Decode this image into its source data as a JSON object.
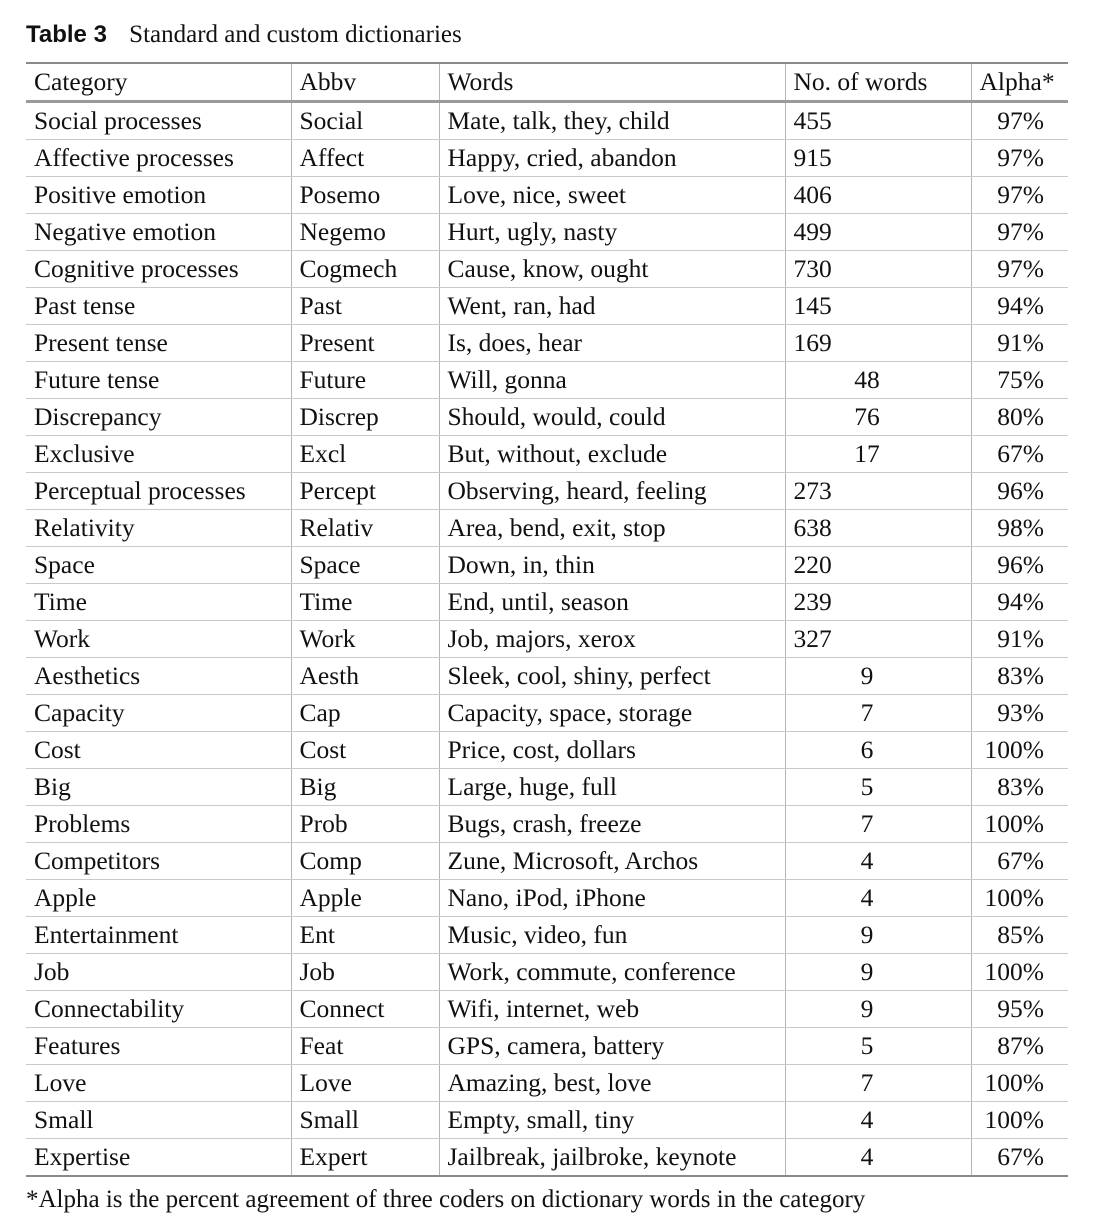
{
  "caption": {
    "label": "Table 3",
    "title": "Standard and custom dictionaries"
  },
  "columns": [
    "Category",
    "Abbv",
    "Words",
    "No. of words",
    "Alpha*"
  ],
  "rows": [
    {
      "category": "Social processes",
      "abbv": "Social",
      "words": "Mate, talk, they, child",
      "count": "455",
      "alpha": "97%"
    },
    {
      "category": "Affective processes",
      "abbv": "Affect",
      "words": "Happy, cried, abandon",
      "count": "915",
      "alpha": "97%"
    },
    {
      "category": "Positive emotion",
      "abbv": "Posemo",
      "words": "Love, nice, sweet",
      "count": "406",
      "alpha": "97%"
    },
    {
      "category": "Negative emotion",
      "abbv": "Negemo",
      "words": "Hurt, ugly, nasty",
      "count": "499",
      "alpha": "97%"
    },
    {
      "category": "Cognitive processes",
      "abbv": "Cogmech",
      "words": "Cause, know, ought",
      "count": "730",
      "alpha": "97%"
    },
    {
      "category": "Past tense",
      "abbv": "Past",
      "words": "Went, ran, had",
      "count": "145",
      "alpha": "94%"
    },
    {
      "category": "Present tense",
      "abbv": "Present",
      "words": "Is, does, hear",
      "count": "169",
      "alpha": "91%"
    },
    {
      "category": "Future tense",
      "abbv": "Future",
      "words": "Will, gonna",
      "count": "48",
      "alpha": "75%"
    },
    {
      "category": "Discrepancy",
      "abbv": "Discrep",
      "words": "Should, would, could",
      "count": "76",
      "alpha": "80%"
    },
    {
      "category": "Exclusive",
      "abbv": "Excl",
      "words": "But, without, exclude",
      "count": "17",
      "alpha": "67%"
    },
    {
      "category": "Perceptual processes",
      "abbv": "Percept",
      "words": "Observing, heard, feeling",
      "count": "273",
      "alpha": "96%"
    },
    {
      "category": "Relativity",
      "abbv": "Relativ",
      "words": "Area, bend, exit, stop",
      "count": "638",
      "alpha": "98%"
    },
    {
      "category": "Space",
      "abbv": "Space",
      "words": "Down, in, thin",
      "count": "220",
      "alpha": "96%"
    },
    {
      "category": "Time",
      "abbv": "Time",
      "words": "End, until, season",
      "count": "239",
      "alpha": "94%"
    },
    {
      "category": "Work",
      "abbv": "Work",
      "words": "Job, majors, xerox",
      "count": "327",
      "alpha": "91%"
    },
    {
      "category": "Aesthetics",
      "abbv": "Aesth",
      "words": "Sleek, cool, shiny, perfect",
      "count": "9",
      "alpha": "83%"
    },
    {
      "category": "Capacity",
      "abbv": "Cap",
      "words": "Capacity, space, storage",
      "count": "7",
      "alpha": "93%"
    },
    {
      "category": "Cost",
      "abbv": "Cost",
      "words": "Price, cost, dollars",
      "count": "6",
      "alpha": "100%"
    },
    {
      "category": "Big",
      "abbv": "Big",
      "words": "Large, huge, full",
      "count": "5",
      "alpha": "83%"
    },
    {
      "category": "Problems",
      "abbv": "Prob",
      "words": "Bugs, crash, freeze",
      "count": "7",
      "alpha": "100%"
    },
    {
      "category": "Competitors",
      "abbv": "Comp",
      "words": "Zune, Microsoft, Archos",
      "count": "4",
      "alpha": "67%"
    },
    {
      "category": "Apple",
      "abbv": "Apple",
      "words": "Nano, iPod, iPhone",
      "count": "4",
      "alpha": "100%"
    },
    {
      "category": "Entertainment",
      "abbv": "Ent",
      "words": "Music, video, fun",
      "count": "9",
      "alpha": "85%"
    },
    {
      "category": "Job",
      "abbv": "Job",
      "words": "Work, commute, conference",
      "count": "9",
      "alpha": "100%"
    },
    {
      "category": "Connectability",
      "abbv": "Connect",
      "words": "Wifi, internet, web",
      "count": "9",
      "alpha": "95%"
    },
    {
      "category": "Features",
      "abbv": "Feat",
      "words": "GPS, camera, battery",
      "count": "5",
      "alpha": "87%"
    },
    {
      "category": "Love",
      "abbv": "Love",
      "words": "Amazing, best, love",
      "count": "7",
      "alpha": "100%"
    },
    {
      "category": "Small",
      "abbv": "Small",
      "words": "Empty, small, tiny",
      "count": "4",
      "alpha": "100%"
    },
    {
      "category": "Expertise",
      "abbv": "Expert",
      "words": "Jailbreak, jailbroke, keynote",
      "count": "4",
      "alpha": "67%"
    }
  ],
  "footnote": "*Alpha is the percent agreement of three coders on dictionary words in the category"
}
